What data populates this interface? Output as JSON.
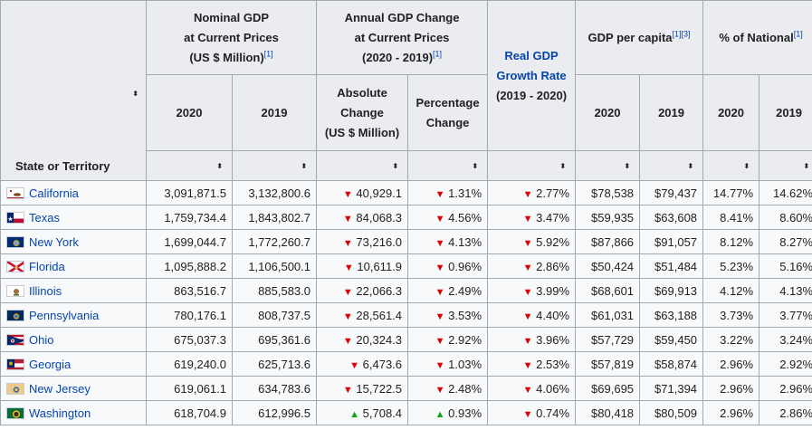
{
  "headers": {
    "state": "State or Territory",
    "nominal": {
      "line1": "Nominal GDP",
      "line2": "at Current Prices",
      "line3": "(US $ Million)",
      "ref": "[1]"
    },
    "annual": {
      "line1": "Annual GDP Change",
      "line2": "at Current Prices",
      "line3": "(2020 - 2019)",
      "ref": "[1]"
    },
    "real": {
      "line1": "Real GDP",
      "line2": "Growth Rate",
      "line3": "(2019 - 2020)"
    },
    "per_capita": {
      "label": "GDP per capita",
      "refs": "[1][3]"
    },
    "pct_national": {
      "label": "% of National",
      "ref": "[1]"
    },
    "abs_change": {
      "line1": "Absolute",
      "line2": "Change",
      "line3": "(US $ Million)"
    },
    "pct_change": {
      "line1": "Percentage",
      "line2": "Change"
    },
    "year_2020": "2020",
    "year_2019": "2019",
    "sort_glyph": "⬍"
  },
  "rows": [
    {
      "state": "California",
      "nominal_2020": "3,091,871.5",
      "nominal_2019": "3,132,800.6",
      "abs_dir": "down",
      "abs": "40,929.1",
      "pct_dir": "down",
      "pct": "1.31%",
      "real_dir": "down",
      "real": "2.77%",
      "pc_2020": "$78,538",
      "pc_2019": "$79,437",
      "nat_2020": "14.77%",
      "nat_2019": "14.62%"
    },
    {
      "state": "Texas",
      "nominal_2020": "1,759,734.4",
      "nominal_2019": "1,843,802.7",
      "abs_dir": "down",
      "abs": "84,068.3",
      "pct_dir": "down",
      "pct": "4.56%",
      "real_dir": "down",
      "real": "3.47%",
      "pc_2020": "$59,935",
      "pc_2019": "$63,608",
      "nat_2020": "8.41%",
      "nat_2019": "8.60%"
    },
    {
      "state": "New York",
      "nominal_2020": "1,699,044.7",
      "nominal_2019": "1,772,260.7",
      "abs_dir": "down",
      "abs": "73,216.0",
      "pct_dir": "down",
      "pct": "4.13%",
      "real_dir": "down",
      "real": "5.92%",
      "pc_2020": "$87,866",
      "pc_2019": "$91,057",
      "nat_2020": "8.12%",
      "nat_2019": "8.27%"
    },
    {
      "state": "Florida",
      "nominal_2020": "1,095,888.2",
      "nominal_2019": "1,106,500.1",
      "abs_dir": "down",
      "abs": "10,611.9",
      "pct_dir": "down",
      "pct": "0.96%",
      "real_dir": "down",
      "real": "2.86%",
      "pc_2020": "$50,424",
      "pc_2019": "$51,484",
      "nat_2020": "5.23%",
      "nat_2019": "5.16%"
    },
    {
      "state": "Illinois",
      "nominal_2020": "863,516.7",
      "nominal_2019": "885,583.0",
      "abs_dir": "down",
      "abs": "22,066.3",
      "pct_dir": "down",
      "pct": "2.49%",
      "real_dir": "down",
      "real": "3.99%",
      "pc_2020": "$68,601",
      "pc_2019": "$69,913",
      "nat_2020": "4.12%",
      "nat_2019": "4.13%"
    },
    {
      "state": "Pennsylvania",
      "nominal_2020": "780,176.1",
      "nominal_2019": "808,737.5",
      "abs_dir": "down",
      "abs": "28,561.4",
      "pct_dir": "down",
      "pct": "3.53%",
      "real_dir": "down",
      "real": "4.40%",
      "pc_2020": "$61,031",
      "pc_2019": "$63,188",
      "nat_2020": "3.73%",
      "nat_2019": "3.77%"
    },
    {
      "state": "Ohio",
      "nominal_2020": "675,037.3",
      "nominal_2019": "695,361.6",
      "abs_dir": "down",
      "abs": "20,324.3",
      "pct_dir": "down",
      "pct": "2.92%",
      "real_dir": "down",
      "real": "3.96%",
      "pc_2020": "$57,729",
      "pc_2019": "$59,450",
      "nat_2020": "3.22%",
      "nat_2019": "3.24%"
    },
    {
      "state": "Georgia",
      "nominal_2020": "619,240.0",
      "nominal_2019": "625,713.6",
      "abs_dir": "down",
      "abs": "6,473.6",
      "pct_dir": "down",
      "pct": "1.03%",
      "real_dir": "down",
      "real": "2.53%",
      "pc_2020": "$57,819",
      "pc_2019": "$58,874",
      "nat_2020": "2.96%",
      "nat_2019": "2.92%"
    },
    {
      "state": "New Jersey",
      "nominal_2020": "619,061.1",
      "nominal_2019": "634,783.6",
      "abs_dir": "down",
      "abs": "15,722.5",
      "pct_dir": "down",
      "pct": "2.48%",
      "real_dir": "down",
      "real": "4.06%",
      "pc_2020": "$69,695",
      "pc_2019": "$71,394",
      "nat_2020": "2.96%",
      "nat_2019": "2.96%"
    },
    {
      "state": "Washington",
      "nominal_2020": "618,704.9",
      "nominal_2019": "612,996.5",
      "abs_dir": "up",
      "abs": "5,708.4",
      "pct_dir": "up",
      "pct": "0.93%",
      "real_dir": "down",
      "real": "0.74%",
      "pc_2020": "$80,418",
      "pc_2019": "$80,509",
      "nat_2020": "2.96%",
      "nat_2019": "2.86%"
    }
  ],
  "flags": {
    "California": "california-flag-icon",
    "Texas": "texas-flag-icon",
    "New York": "new-york-flag-icon",
    "Florida": "florida-flag-icon",
    "Illinois": "illinois-flag-icon",
    "Pennsylvania": "pennsylvania-flag-icon",
    "Ohio": "ohio-flag-icon",
    "Georgia": "georgia-flag-icon",
    "New Jersey": "new-jersey-flag-icon",
    "Washington": "washington-flag-icon"
  },
  "colors": {
    "up": "#14a514",
    "down": "#dd0000",
    "link": "#0645ad",
    "header_bg": "#eaecf0",
    "cell_bg": "#f8f9fa",
    "border": "#a2a9b1"
  }
}
